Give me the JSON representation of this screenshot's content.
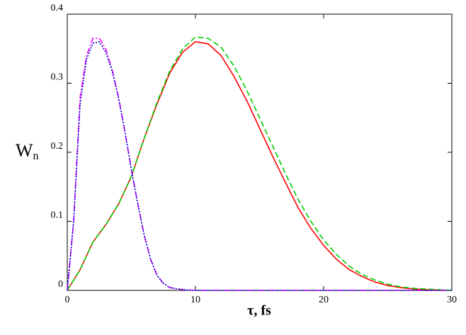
{
  "chart_data": {
    "type": "line",
    "xlabel": "τ, fs",
    "ylabel": {
      "main": "W",
      "subscript": "n"
    },
    "xlim": [
      0,
      30
    ],
    "xticks": [
      0,
      10,
      20,
      30
    ],
    "ylim": [
      0,
      0.4
    ],
    "yticks": [
      0,
      0.1,
      0.2,
      0.3,
      0.4
    ],
    "grid": false,
    "series": [
      {
        "color": "#ff0000",
        "dash": "solid",
        "x": [
          0,
          1,
          2,
          3,
          4,
          5,
          6,
          7,
          8,
          9,
          10,
          11,
          12,
          13,
          14,
          15,
          16,
          17,
          18,
          19,
          20,
          21,
          22,
          23,
          24,
          25,
          26,
          27,
          28,
          29,
          30
        ],
        "values": [
          0,
          0.03,
          0.07,
          0.095,
          0.125,
          0.165,
          0.22,
          0.27,
          0.315,
          0.345,
          0.36,
          0.357,
          0.34,
          0.31,
          0.275,
          0.235,
          0.195,
          0.157,
          0.12,
          0.09,
          0.065,
          0.045,
          0.03,
          0.02,
          0.012,
          0.007,
          0.004,
          0.002,
          0.001,
          0.0005,
          0
        ]
      },
      {
        "color": "#00cc00",
        "dash": "dashed",
        "x": [
          0,
          1,
          2,
          3,
          4,
          5,
          6,
          7,
          8,
          9,
          10,
          11,
          12,
          13,
          14,
          15,
          16,
          17,
          18,
          19,
          20,
          21,
          22,
          23,
          24,
          25,
          26,
          27,
          28,
          29,
          30
        ],
        "values": [
          0,
          0.03,
          0.07,
          0.095,
          0.125,
          0.165,
          0.22,
          0.272,
          0.318,
          0.35,
          0.367,
          0.365,
          0.352,
          0.325,
          0.29,
          0.25,
          0.21,
          0.17,
          0.132,
          0.1,
          0.073,
          0.052,
          0.035,
          0.023,
          0.015,
          0.009,
          0.005,
          0.003,
          0.002,
          0.001,
          0
        ]
      },
      {
        "color": "#ff00ff",
        "dash": "dashdot",
        "x": [
          0,
          0.5,
          1,
          1.5,
          2,
          2.5,
          3,
          3.5,
          4,
          4.5,
          5,
          5.5,
          6,
          6.5,
          7,
          7.5,
          8,
          9,
          10,
          30
        ],
        "values": [
          0,
          0.1,
          0.28,
          0.34,
          0.365,
          0.365,
          0.35,
          0.32,
          0.28,
          0.23,
          0.175,
          0.125,
          0.08,
          0.045,
          0.022,
          0.01,
          0.004,
          0.001,
          0,
          0
        ]
      },
      {
        "color": "#0000cc",
        "dash": "dotted",
        "x": [
          0,
          0.5,
          1,
          1.5,
          2,
          2.5,
          3,
          3.5,
          4,
          4.5,
          5,
          5.5,
          6,
          6.5,
          7,
          7.5,
          8,
          9,
          10,
          30
        ],
        "values": [
          0,
          0.1,
          0.27,
          0.335,
          0.358,
          0.36,
          0.345,
          0.318,
          0.278,
          0.23,
          0.175,
          0.125,
          0.08,
          0.045,
          0.022,
          0.01,
          0.004,
          0.001,
          0,
          0
        ]
      }
    ]
  }
}
